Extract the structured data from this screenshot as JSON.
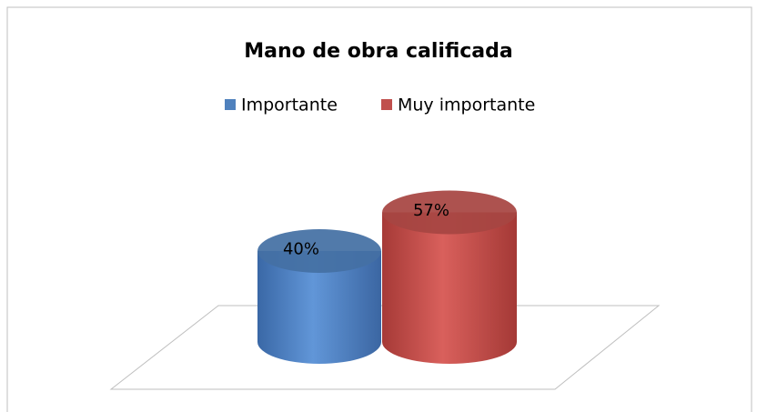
{
  "chart_data": {
    "type": "bar",
    "title": "Mano de obra calificada",
    "categories": [
      null
    ],
    "series": [
      {
        "name": "Importante",
        "color": "#4f81bd",
        "values": [
          40
        ],
        "value_labels": [
          "40%"
        ]
      },
      {
        "name": "Muy importante",
        "color": "#c0504d",
        "values": [
          57
        ],
        "value_labels": [
          "57%"
        ]
      }
    ]
  }
}
